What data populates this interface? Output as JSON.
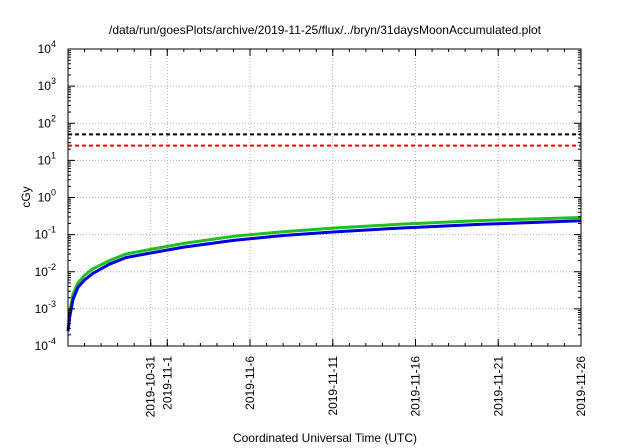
{
  "chart_data": {
    "type": "line",
    "title": "/data/run/goesPlots/archive/2019-11-25/flux/../bryn/31daysMoonAccumulated.plot",
    "xlabel": "Coordinated Universal Time (UTC)",
    "ylabel": "cGy",
    "y_scale": "log",
    "ylim_exponents": [
      -4,
      4
    ],
    "y_tick_base": "10",
    "y_tick_exponents": [
      "-4",
      "-3",
      "-2",
      "-1",
      "0",
      "1",
      "2",
      "3",
      "4"
    ],
    "xlim_days": [
      0,
      31
    ],
    "x_ticks": [
      {
        "day": 5,
        "label": "2019-10-31"
      },
      {
        "day": 6,
        "label": "2019-11-1"
      },
      {
        "day": 11,
        "label": "2019-11-6"
      },
      {
        "day": 16,
        "label": "2019-11-11"
      },
      {
        "day": 21,
        "label": "2019-11-16"
      },
      {
        "day": 26,
        "label": "2019-11-21"
      },
      {
        "day": 31,
        "label": "2019-11-26"
      }
    ],
    "grid": true,
    "reference_lines": [
      {
        "y": 50,
        "color": "#000000",
        "style": "dashed"
      },
      {
        "y": 25,
        "color": "#ff0000",
        "style": "dashed"
      }
    ],
    "series": [
      {
        "color": "#20c020",
        "points": [
          [
            0,
            0.0003
          ],
          [
            0.1,
            0.0008
          ],
          [
            0.3,
            0.0025
          ],
          [
            0.6,
            0.005
          ],
          [
            1,
            0.008
          ],
          [
            1.5,
            0.012
          ],
          [
            2.5,
            0.02
          ],
          [
            3.5,
            0.03
          ],
          [
            5,
            0.04
          ],
          [
            7,
            0.058
          ],
          [
            10,
            0.09
          ],
          [
            13,
            0.12
          ],
          [
            16,
            0.15
          ],
          [
            20,
            0.19
          ],
          [
            25,
            0.24
          ],
          [
            31,
            0.29
          ]
        ]
      },
      {
        "color": "#0000e0",
        "points": [
          [
            0,
            0.00025
          ],
          [
            0.1,
            0.0006
          ],
          [
            0.3,
            0.0018
          ],
          [
            0.6,
            0.0038
          ],
          [
            1,
            0.006
          ],
          [
            1.5,
            0.009
          ],
          [
            2.5,
            0.016
          ],
          [
            3.5,
            0.024
          ],
          [
            5,
            0.032
          ],
          [
            7,
            0.046
          ],
          [
            10,
            0.07
          ],
          [
            13,
            0.095
          ],
          [
            16,
            0.118
          ],
          [
            20,
            0.15
          ],
          [
            25,
            0.19
          ],
          [
            31,
            0.235
          ]
        ]
      }
    ]
  }
}
